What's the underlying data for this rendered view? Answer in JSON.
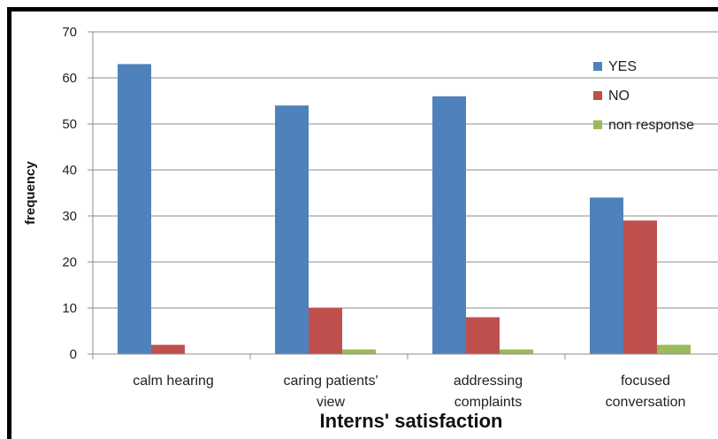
{
  "chart_data": {
    "type": "bar",
    "categories": [
      [
        "calm hearing"
      ],
      [
        "caring patients'",
        "view"
      ],
      [
        "addressing",
        "complaints"
      ],
      [
        "focused",
        "conversation"
      ]
    ],
    "series": [
      {
        "name": "YES",
        "color": "#4f81bd",
        "values": [
          63,
          54,
          56,
          34
        ]
      },
      {
        "name": "NO",
        "color": "#c0504d",
        "values": [
          2,
          10,
          8,
          29
        ]
      },
      {
        "name": "non response",
        "color": "#9bbb59",
        "values": [
          0,
          1,
          1,
          2
        ]
      }
    ],
    "xlabel": "Interns' satisfaction",
    "ylabel": "frequency",
    "ylim": [
      0,
      70
    ],
    "yticks": [
      0,
      10,
      20,
      30,
      40,
      50,
      60,
      70
    ],
    "grid": true,
    "legend": "top-right"
  }
}
